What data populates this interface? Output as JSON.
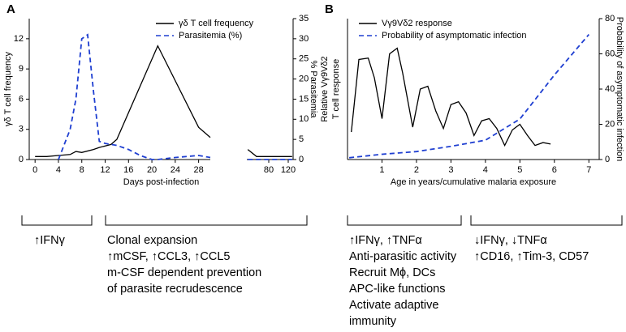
{
  "chart_data": [
    {
      "type": "line",
      "panel": "A",
      "xlabel": "Days post-infection",
      "ylabel": "γδ T cell frequency",
      "y2label": "% Parasitemia",
      "legend": "upper center",
      "xlim": [
        -1,
        30
      ],
      "xticks": [
        0,
        4,
        8,
        12,
        16,
        20,
        24,
        28
      ],
      "x2lim": [
        35,
        130
      ],
      "x2ticks": [
        80,
        120
      ],
      "ylim": [
        0,
        14
      ],
      "yticks": [
        0,
        3,
        6,
        9,
        12
      ],
      "y2lim": [
        0,
        35
      ],
      "y2ticks": [
        0,
        5,
        10,
        15,
        20,
        25,
        30,
        35
      ],
      "series": [
        {
          "name": "γδ T cell frequency",
          "color": "#000000",
          "style": "solid",
          "x": [
            0,
            2,
            4,
            6,
            7,
            8,
            10,
            11,
            13,
            14,
            21,
            28,
            30,
            null,
            37,
            55,
            128
          ],
          "values": [
            0.3,
            0.3,
            0.4,
            0.5,
            0.8,
            0.7,
            1,
            1.2,
            1.5,
            2,
            11.3,
            3.2,
            2.2,
            null,
            1,
            0.3,
            0.3
          ]
        },
        {
          "name": "Parasitemia (%)",
          "color": "#1f3fd1",
          "style": "dashed",
          "axis": "y2",
          "x": [
            4,
            6,
            7,
            8,
            9,
            10,
            11,
            12,
            14,
            16,
            18,
            20,
            21,
            24,
            28,
            30,
            null,
            37,
            128
          ],
          "values": [
            0,
            7.5,
            15,
            30,
            31,
            17,
            4.5,
            4,
            3.5,
            2.5,
            1,
            0,
            0,
            0.5,
            1,
            0.5,
            null,
            0,
            0
          ]
        }
      ],
      "notes": [
        [
          "↑IFNγ"
        ],
        [
          "Clonal expansion",
          "↑mCSF, ↑CCL3, ↑CCL5",
          "m-CSF dependent prevention",
          "of parasite recrudescence"
        ]
      ]
    },
    {
      "type": "line",
      "panel": "B",
      "xlabel": "Age in years/cumulative malaria exposure",
      "ylabel": [
        "Relative Vγ9Vδ2",
        "T cell response"
      ],
      "y2label": "Probability of asymptomatic infection",
      "legend": "upper left",
      "xlim": [
        0,
        7.3
      ],
      "xticks": [
        1,
        2,
        3,
        4,
        5,
        6,
        7
      ],
      "ylim": [
        0,
        100
      ],
      "y2lim": [
        0,
        80
      ],
      "y2ticks": [
        0,
        20,
        40,
        60,
        80
      ],
      "series": [
        {
          "name": "Vγ9Vδ2 response",
          "color": "#000000",
          "style": "solid",
          "x": [
            0.11,
            0.33,
            0.6,
            0.78,
            1.0,
            1.22,
            1.44,
            1.6,
            1.89,
            2.11,
            2.33,
            2.56,
            2.78,
            3.0,
            3.22,
            3.44,
            3.67,
            3.89,
            4.11,
            4.33,
            4.56,
            4.78,
            5.0,
            5.22,
            5.44,
            5.67,
            5.89
          ],
          "values": [
            19.5,
            71,
            72,
            58,
            29,
            75,
            79,
            61.5,
            23,
            50,
            52,
            34.5,
            22,
            39,
            41,
            33,
            17,
            27.5,
            29,
            22,
            10,
            21,
            25,
            17,
            10,
            12,
            11
          ]
        },
        {
          "name": "Probability of asymptomatic infection",
          "color": "#1f3fd1",
          "style": "dashed",
          "axis": "y2",
          "x": [
            0.05,
            1,
            2,
            3,
            4,
            5,
            6,
            7
          ],
          "values": [
            1,
            3,
            4.5,
            7.5,
            11,
            23,
            48,
            71
          ]
        }
      ],
      "notes": [
        [
          "↑IFNγ, ↑TNFα",
          "Anti-parasitic activity",
          "Recruit Mϕ, DCs",
          "APC-like functions",
          "Activate adaptive",
          "immunity"
        ],
        [
          "↓IFNγ, ↓TNFα",
          "↑CD16, ↑Tim-3, CD57"
        ]
      ]
    }
  ]
}
